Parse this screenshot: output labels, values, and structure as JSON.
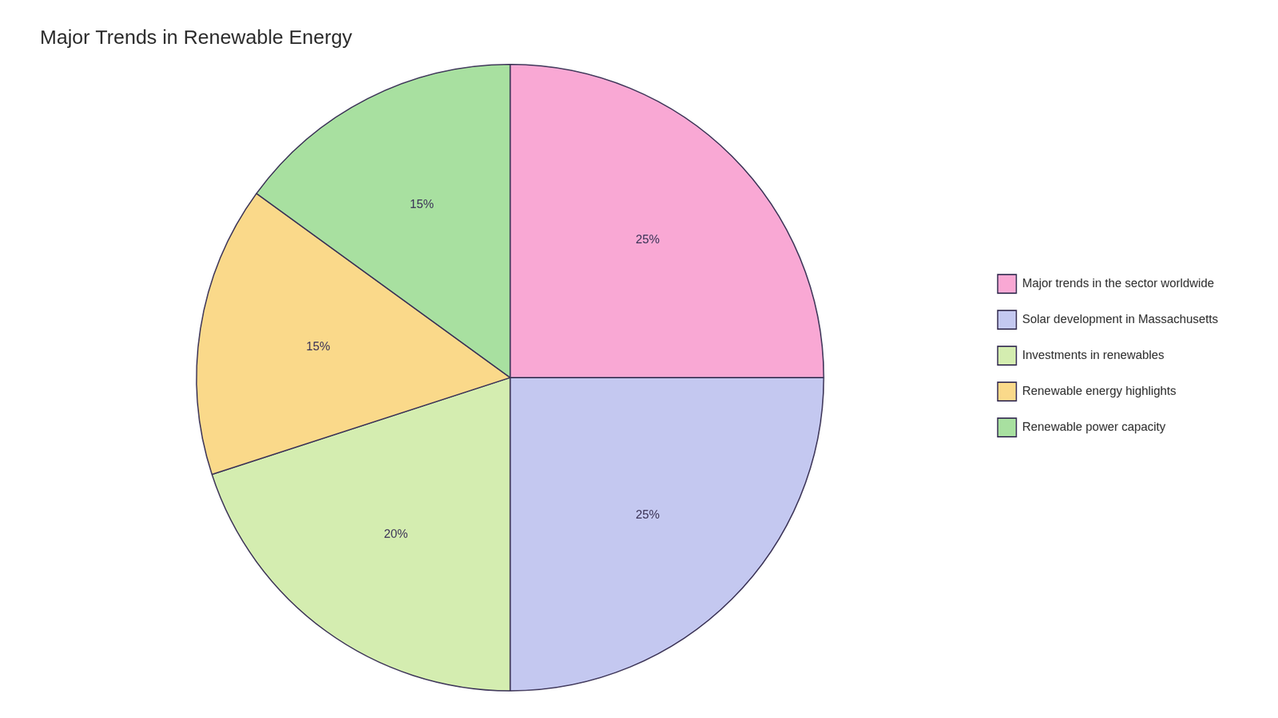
{
  "chart_data": {
    "type": "pie",
    "title": "Major Trends in Renewable Energy",
    "categories": [
      "Major trends in the sector worldwide",
      "Solar development in Massachusetts",
      "Investments in renewables",
      "Renewable energy highlights",
      "Renewable power capacity"
    ],
    "values": [
      25,
      25,
      20,
      15,
      15
    ],
    "value_labels": [
      "25%",
      "25%",
      "20%",
      "15%",
      "15%"
    ],
    "colors": [
      "#F9A8D4",
      "#C4C8F0",
      "#D4EDB0",
      "#FAD98A",
      "#A8E0A0"
    ],
    "data_labels": true,
    "legend": "right"
  }
}
